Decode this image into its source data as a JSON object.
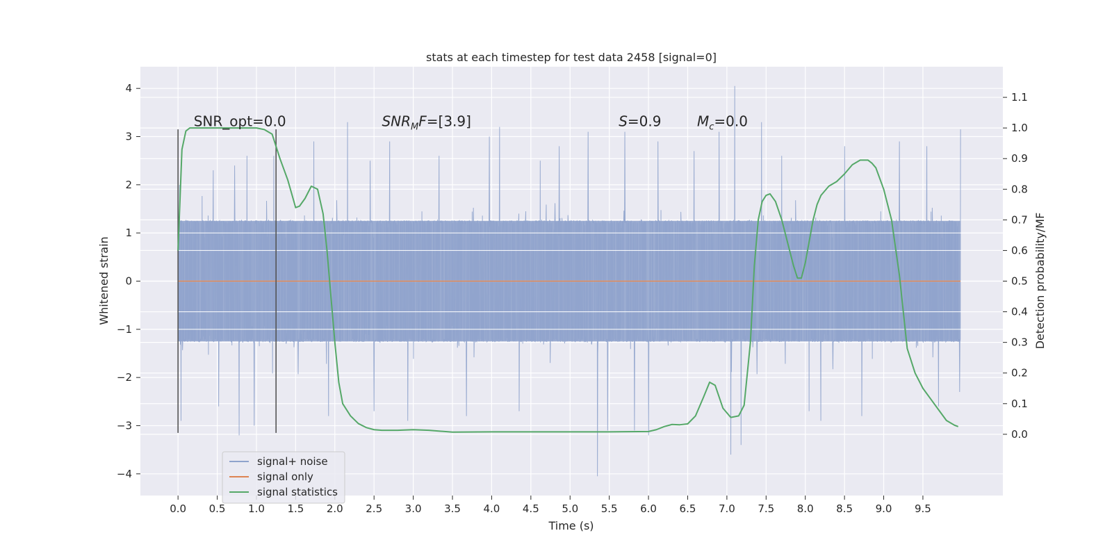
{
  "chart_data": {
    "type": "line",
    "title": "stats at each timestep for test data 2458 [signal=0]",
    "xlabel": "Time (s)",
    "ylabel": "Whitened strain",
    "ylabel_right": "Detection probability/MF",
    "xlim": [
      -0.48,
      10.52
    ],
    "ylim": [
      -4.45,
      4.45
    ],
    "ylim_right": [
      -0.2,
      1.2
    ],
    "x_ticks": [
      0.0,
      0.5,
      1.0,
      1.5,
      2.0,
      2.5,
      3.0,
      3.5,
      4.0,
      4.5,
      5.0,
      5.5,
      6.0,
      6.5,
      7.0,
      7.5,
      8.0,
      8.5,
      9.0,
      9.5
    ],
    "y_ticks": [
      -4,
      -3,
      -2,
      -1,
      0,
      1,
      2,
      3,
      4
    ],
    "y_ticks_right": [
      0.0,
      0.1,
      0.2,
      0.3,
      0.4,
      0.5,
      0.6,
      0.7,
      0.8,
      0.9,
      1.0,
      1.1
    ],
    "grid": true,
    "legend_position": "lower-left",
    "colors": {
      "background": "#eaeaf2",
      "grid": "#ffffff",
      "noise": "#8fa3cc",
      "signal": "#dd8452",
      "stats": "#55a868",
      "marker": "#555555"
    },
    "noise_series": {
      "name": "signal+ noise",
      "x_range": [
        0.0,
        9.98
      ],
      "typical_amplitude": 1.25,
      "peaks": [
        {
          "x": 0.02,
          "y": 2.0
        },
        {
          "x": 0.04,
          "y": -2.9
        },
        {
          "x": 0.45,
          "y": 2.3
        },
        {
          "x": 0.52,
          "y": -2.6
        },
        {
          "x": 0.72,
          "y": 2.4
        },
        {
          "x": 0.78,
          "y": -3.2
        },
        {
          "x": 0.88,
          "y": 2.6
        },
        {
          "x": 0.97,
          "y": -3.0
        },
        {
          "x": 1.22,
          "y": 2.6
        },
        {
          "x": 1.38,
          "y": -1.3
        },
        {
          "x": 1.73,
          "y": 2.9
        },
        {
          "x": 1.92,
          "y": -2.8
        },
        {
          "x": 2.16,
          "y": 3.3
        },
        {
          "x": 2.45,
          "y": 2.5
        },
        {
          "x": 2.5,
          "y": -2.7
        },
        {
          "x": 2.7,
          "y": 2.9
        },
        {
          "x": 2.93,
          "y": -2.9
        },
        {
          "x": 3.33,
          "y": 2.6
        },
        {
          "x": 3.68,
          "y": -2.8
        },
        {
          "x": 3.97,
          "y": 3.0
        },
        {
          "x": 4.1,
          "y": 3.2
        },
        {
          "x": 4.35,
          "y": -2.7
        },
        {
          "x": 4.62,
          "y": 2.5
        },
        {
          "x": 4.86,
          "y": 2.8
        },
        {
          "x": 5.23,
          "y": 3.1
        },
        {
          "x": 5.35,
          "y": -4.05
        },
        {
          "x": 5.48,
          "y": -3.1
        },
        {
          "x": 5.7,
          "y": 3.1
        },
        {
          "x": 5.82,
          "y": -3.1
        },
        {
          "x": 6.0,
          "y": -3.2
        },
        {
          "x": 6.12,
          "y": 2.9
        },
        {
          "x": 6.58,
          "y": 2.7
        },
        {
          "x": 6.9,
          "y": 3.1
        },
        {
          "x": 7.05,
          "y": -3.6
        },
        {
          "x": 7.1,
          "y": 4.05
        },
        {
          "x": 7.18,
          "y": -3.4
        },
        {
          "x": 7.44,
          "y": 3.3
        },
        {
          "x": 7.7,
          "y": 2.6
        },
        {
          "x": 8.05,
          "y": -2.7
        },
        {
          "x": 8.2,
          "y": -2.9
        },
        {
          "x": 8.5,
          "y": 2.8
        },
        {
          "x": 8.72,
          "y": -2.8
        },
        {
          "x": 9.2,
          "y": 2.9
        },
        {
          "x": 9.55,
          "y": 2.8
        },
        {
          "x": 9.7,
          "y": -2.6
        },
        {
          "x": 9.98,
          "y": 3.15
        },
        {
          "x": 9.97,
          "y": -2.3
        }
      ]
    },
    "signal_series": {
      "name": "signal only",
      "x": [
        0.0,
        9.98
      ],
      "y": [
        0.0,
        0.0
      ]
    },
    "stats_series": {
      "name": "signal statistics",
      "x": [
        0.0,
        0.05,
        0.1,
        0.15,
        0.25,
        0.4,
        0.6,
        0.8,
        1.0,
        1.1,
        1.2,
        1.3,
        1.4,
        1.5,
        1.55,
        1.62,
        1.7,
        1.78,
        1.85,
        1.9,
        1.95,
        2.0,
        2.05,
        2.1,
        2.2,
        2.3,
        2.4,
        2.5,
        2.6,
        2.8,
        3.0,
        3.2,
        3.5,
        4.0,
        4.5,
        5.0,
        5.5,
        6.0,
        6.1,
        6.2,
        6.3,
        6.4,
        6.5,
        6.6,
        6.7,
        6.78,
        6.85,
        6.95,
        7.05,
        7.15,
        7.22,
        7.3,
        7.35,
        7.4,
        7.45,
        7.5,
        7.55,
        7.62,
        7.7,
        7.78,
        7.85,
        7.9,
        7.95,
        8.0,
        8.05,
        8.1,
        8.15,
        8.2,
        8.3,
        8.4,
        8.5,
        8.6,
        8.7,
        8.8,
        8.85,
        8.9,
        9.0,
        9.1,
        9.2,
        9.3,
        9.4,
        9.5,
        9.6,
        9.7,
        9.8,
        9.9,
        9.95
      ],
      "y": [
        0.6,
        0.93,
        0.99,
        1.0,
        1.0,
        1.0,
        1.0,
        1.0,
        1.0,
        0.995,
        0.98,
        0.9,
        0.83,
        0.74,
        0.745,
        0.77,
        0.81,
        0.8,
        0.72,
        0.6,
        0.45,
        0.3,
        0.17,
        0.1,
        0.06,
        0.035,
        0.022,
        0.015,
        0.013,
        0.013,
        0.015,
        0.013,
        0.007,
        0.008,
        0.008,
        0.008,
        0.008,
        0.009,
        0.015,
        0.025,
        0.032,
        0.031,
        0.034,
        0.06,
        0.12,
        0.17,
        0.16,
        0.085,
        0.055,
        0.06,
        0.095,
        0.3,
        0.55,
        0.7,
        0.76,
        0.78,
        0.785,
        0.76,
        0.7,
        0.62,
        0.55,
        0.51,
        0.51,
        0.56,
        0.63,
        0.7,
        0.75,
        0.78,
        0.81,
        0.825,
        0.85,
        0.88,
        0.895,
        0.895,
        0.885,
        0.87,
        0.8,
        0.7,
        0.52,
        0.28,
        0.2,
        0.15,
        0.115,
        0.08,
        0.045,
        0.03,
        0.025
      ]
    },
    "markers_x": [
      0.0,
      1.25
    ],
    "markers_ylim": [
      -3.15,
      3.15
    ],
    "annotations": [
      {
        "x": 0.2,
        "y": 3.22,
        "prefix": "SNR_opt=0.0",
        "sub": "",
        "suffix": "",
        "italic": false
      },
      {
        "x": 2.6,
        "y": 3.22,
        "prefix": "SNR",
        "sub": "M",
        "suffix": "F",
        "value": "=[3.9]",
        "italic": true
      },
      {
        "x": 5.62,
        "y": 3.22,
        "prefix": "S",
        "sub": "",
        "suffix": "",
        "value": "=0.9",
        "italic": true
      },
      {
        "x": 6.62,
        "y": 3.22,
        "prefix": "M",
        "sub": "c",
        "suffix": "",
        "value": "=0.0",
        "italic": true
      }
    ],
    "legend": [
      "signal+ noise",
      "signal only",
      "signal statistics"
    ]
  }
}
